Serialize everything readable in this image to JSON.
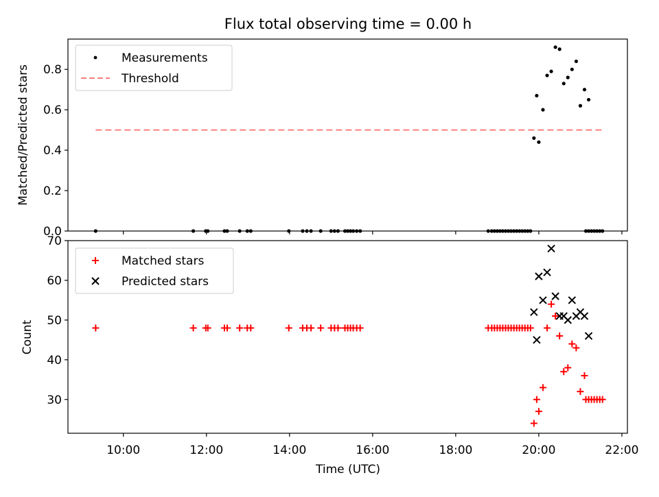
{
  "chart_data": [
    {
      "type": "scatter",
      "title": "Flux total observing time = 0.00 h",
      "xlabel": "",
      "ylabel": "Matched/Predicted stars",
      "ylim": [
        0,
        0.95
      ],
      "y_ticks": [
        0.0,
        0.2,
        0.4,
        0.6,
        0.8
      ],
      "y_tick_labels": [
        "0.0",
        "0.2",
        "0.4",
        "0.6",
        "0.8"
      ],
      "legend_position": "top-left",
      "colors": {
        "measurements": "#000000",
        "threshold": "#ff7f7f"
      },
      "series": [
        {
          "name": "Measurements",
          "x": [
            "09:20",
            "11:40",
            "12:00",
            "12:30",
            "12:50",
            "13:10",
            "14:00",
            "14:20",
            "14:40",
            "15:00",
            "15:20",
            "15:40",
            "18:50",
            "19:00",
            "19:10",
            "19:20",
            "19:30",
            "19:40",
            "19:50",
            "20:00",
            "20:10",
            "20:20",
            "20:30",
            "20:40",
            "20:50",
            "21:00",
            "21:10",
            "21:20",
            "21:30"
          ],
          "y": [
            0,
            0,
            0,
            0,
            0,
            0,
            0,
            0,
            0,
            0,
            0,
            0,
            0,
            0,
            0,
            0,
            0,
            0,
            0.46,
            0.67,
            0.6,
            0.77,
            0.91,
            0.73,
            0.84,
            0.62,
            0.65,
            0,
            0
          ],
          "points": [
            [
              "09:20",
              0
            ],
            [
              "11:41",
              0
            ],
            [
              "11:59",
              0
            ],
            [
              "12:02",
              0
            ],
            [
              "12:26",
              0
            ],
            [
              "12:30",
              0
            ],
            [
              "12:48",
              0
            ],
            [
              "12:59",
              0
            ],
            [
              "13:04",
              0
            ],
            [
              "13:59",
              0
            ],
            [
              "14:19",
              0
            ],
            [
              "14:25",
              0
            ],
            [
              "14:31",
              0
            ],
            [
              "14:45",
              0
            ],
            [
              "15:00",
              0
            ],
            [
              "15:05",
              0
            ],
            [
              "15:10",
              0
            ],
            [
              "15:20",
              0
            ],
            [
              "15:24",
              0
            ],
            [
              "15:28",
              0
            ],
            [
              "15:32",
              0
            ],
            [
              "15:37",
              0
            ],
            [
              "15:42",
              0
            ],
            [
              "18:47",
              0
            ],
            [
              "18:52",
              0
            ],
            [
              "18:56",
              0
            ],
            [
              "19:00",
              0
            ],
            [
              "19:04",
              0
            ],
            [
              "19:08",
              0
            ],
            [
              "19:12",
              0
            ],
            [
              "19:16",
              0
            ],
            [
              "19:20",
              0
            ],
            [
              "19:24",
              0
            ],
            [
              "19:28",
              0
            ],
            [
              "19:32",
              0
            ],
            [
              "19:36",
              0
            ],
            [
              "19:40",
              0
            ],
            [
              "19:44",
              0
            ],
            [
              "19:48",
              0
            ],
            [
              "19:53",
              0.46
            ],
            [
              "19:57",
              0.67
            ],
            [
              "20:00",
              0.44
            ],
            [
              "20:06",
              0.6
            ],
            [
              "20:12",
              0.77
            ],
            [
              "20:18",
              0.79
            ],
            [
              "20:24",
              0.91
            ],
            [
              "20:30",
              0.9
            ],
            [
              "20:36",
              0.73
            ],
            [
              "20:42",
              0.76
            ],
            [
              "20:48",
              0.8
            ],
            [
              "20:54",
              0.84
            ],
            [
              "21:00",
              0.62
            ],
            [
              "21:06",
              0.7
            ],
            [
              "21:12",
              0.65
            ],
            [
              "21:08",
              0
            ],
            [
              "21:12",
              0
            ],
            [
              "21:16",
              0
            ],
            [
              "21:20",
              0
            ],
            [
              "21:24",
              0
            ],
            [
              "21:28",
              0
            ],
            [
              "21:32",
              0
            ]
          ]
        },
        {
          "name": "Threshold",
          "x": [
            "09:20",
            "21:32"
          ],
          "y": [
            0.5,
            0.5
          ],
          "style": "dashed"
        }
      ]
    },
    {
      "type": "scatter",
      "title": "",
      "xlabel": "Time (UTC)",
      "ylabel": "Count",
      "ylim": [
        21.5,
        70
      ],
      "y_ticks": [
        30,
        40,
        50,
        60,
        70
      ],
      "y_tick_labels": [
        "30",
        "40",
        "50",
        "60",
        "70"
      ],
      "x_ticks": [
        "10:00",
        "12:00",
        "14:00",
        "16:00",
        "18:00",
        "20:00",
        "22:00"
      ],
      "xlim": [
        "08:40",
        "22:08"
      ],
      "legend_position": "top-left",
      "colors": {
        "matched": "#ff0000",
        "predicted": "#000000"
      },
      "series": [
        {
          "name": "Matched stars",
          "marker": "+",
          "points": [
            [
              "09:20",
              48
            ],
            [
              "11:41",
              48
            ],
            [
              "11:59",
              48
            ],
            [
              "12:02",
              48
            ],
            [
              "12:26",
              48
            ],
            [
              "12:30",
              48
            ],
            [
              "12:48",
              48
            ],
            [
              "12:59",
              48
            ],
            [
              "13:04",
              48
            ],
            [
              "13:59",
              48
            ],
            [
              "14:19",
              48
            ],
            [
              "14:25",
              48
            ],
            [
              "14:31",
              48
            ],
            [
              "14:45",
              48
            ],
            [
              "15:00",
              48
            ],
            [
              "15:05",
              48
            ],
            [
              "15:10",
              48
            ],
            [
              "15:20",
              48
            ],
            [
              "15:24",
              48
            ],
            [
              "15:28",
              48
            ],
            [
              "15:32",
              48
            ],
            [
              "15:37",
              48
            ],
            [
              "15:42",
              48
            ],
            [
              "18:47",
              48
            ],
            [
              "18:52",
              48
            ],
            [
              "18:56",
              48
            ],
            [
              "19:00",
              48
            ],
            [
              "19:04",
              48
            ],
            [
              "19:08",
              48
            ],
            [
              "19:12",
              48
            ],
            [
              "19:16",
              48
            ],
            [
              "19:20",
              48
            ],
            [
              "19:24",
              48
            ],
            [
              "19:28",
              48
            ],
            [
              "19:32",
              48
            ],
            [
              "19:36",
              48
            ],
            [
              "19:40",
              48
            ],
            [
              "19:44",
              48
            ],
            [
              "19:48",
              48
            ],
            [
              "19:53",
              24
            ],
            [
              "19:57",
              30
            ],
            [
              "20:00",
              27
            ],
            [
              "20:06",
              33
            ],
            [
              "20:12",
              48
            ],
            [
              "20:18",
              54
            ],
            [
              "20:24",
              51
            ],
            [
              "20:30",
              46
            ],
            [
              "20:36",
              37
            ],
            [
              "20:42",
              38
            ],
            [
              "20:48",
              44
            ],
            [
              "20:54",
              43
            ],
            [
              "21:00",
              32
            ],
            [
              "21:06",
              36
            ],
            [
              "21:08",
              30
            ],
            [
              "21:12",
              30
            ],
            [
              "21:16",
              30
            ],
            [
              "21:20",
              30
            ],
            [
              "21:24",
              30
            ],
            [
              "21:28",
              30
            ],
            [
              "21:32",
              30
            ]
          ]
        },
        {
          "name": "Predicted stars",
          "marker": "x",
          "points": [
            [
              "19:53",
              52
            ],
            [
              "19:57",
              45
            ],
            [
              "20:00",
              61
            ],
            [
              "20:06",
              55
            ],
            [
              "20:12",
              62
            ],
            [
              "20:18",
              68
            ],
            [
              "20:24",
              56
            ],
            [
              "20:30",
              51
            ],
            [
              "20:36",
              51
            ],
            [
              "20:42",
              50
            ],
            [
              "20:48",
              55
            ],
            [
              "20:54",
              51
            ],
            [
              "21:00",
              52
            ],
            [
              "21:06",
              51
            ],
            [
              "21:12",
              46
            ]
          ]
        }
      ]
    }
  ]
}
